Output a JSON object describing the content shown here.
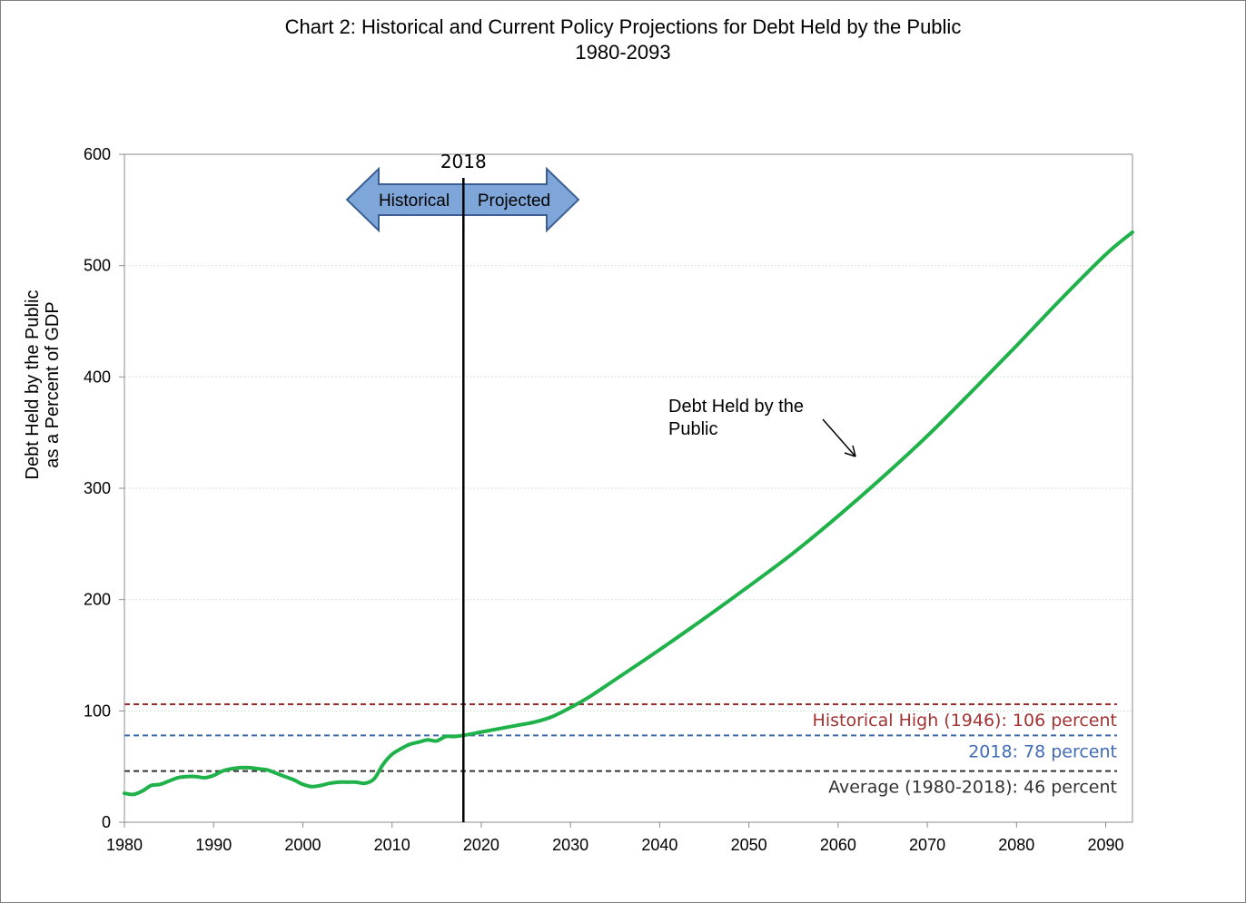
{
  "chart_data": {
    "type": "line",
    "title": "Chart 2:  Historical and Current Policy Projections for Debt Held by the Public",
    "subtitle": "1980-2093",
    "xlabel": "",
    "ylabel_line1": "Debt Held by the Public",
    "ylabel_line2": "as a Percent of GDP",
    "xlim": [
      1980,
      2093
    ],
    "ylim": [
      0,
      600
    ],
    "x_ticks": [
      1980,
      1990,
      2000,
      2010,
      2020,
      2030,
      2040,
      2050,
      2060,
      2070,
      2080,
      2090
    ],
    "y_ticks": [
      0,
      100,
      200,
      300,
      400,
      500,
      600
    ],
    "grid": "horizontal",
    "series": [
      {
        "name": "Debt Held by the Public",
        "color": "#1fb24a",
        "x": [
          1980,
          1981,
          1982,
          1983,
          1984,
          1985,
          1986,
          1987,
          1988,
          1989,
          1990,
          1991,
          1992,
          1993,
          1994,
          1995,
          1996,
          1997,
          1998,
          1999,
          2000,
          2001,
          2002,
          2003,
          2004,
          2005,
          2006,
          2007,
          2008,
          2009,
          2010,
          2011,
          2012,
          2013,
          2014,
          2015,
          2016,
          2017,
          2018,
          2020,
          2022,
          2024,
          2026,
          2028,
          2030,
          2032,
          2035,
          2040,
          2045,
          2050,
          2055,
          2060,
          2065,
          2070,
          2075,
          2080,
          2085,
          2090,
          2093
        ],
        "values": [
          26,
          25,
          28,
          33,
          34,
          37,
          40,
          41,
          41,
          40,
          42,
          46,
          48,
          49,
          49,
          48,
          47,
          44,
          41,
          38,
          34,
          32,
          33,
          35,
          36,
          36,
          36,
          35,
          39,
          52,
          61,
          66,
          70,
          72,
          74,
          73,
          77,
          77,
          78,
          81,
          84,
          87,
          90,
          95,
          103,
          112,
          128,
          155,
          183,
          212,
          242,
          275,
          310,
          347,
          387,
          428,
          470,
          510,
          530
        ]
      }
    ],
    "reference_lines": [
      {
        "label": "Historical High (1946): 106 percent",
        "value": 106,
        "color": "#9b2d2d",
        "label_color": "#a33232"
      },
      {
        "label": "2018: 78 percent",
        "value": 78,
        "color": "#3b67a8",
        "label_color": "#3f6cb5"
      },
      {
        "label": "Average (1980-2018): 46 percent",
        "value": 46,
        "color": "#333333",
        "label_color": "#333333"
      }
    ],
    "divider": {
      "year": 2018,
      "label": "2018"
    },
    "arrow_labels": {
      "left": "Historical",
      "right": "Projected"
    },
    "annotation": {
      "text_line1": "Debt Held by the",
      "text_line2": "Public"
    }
  }
}
